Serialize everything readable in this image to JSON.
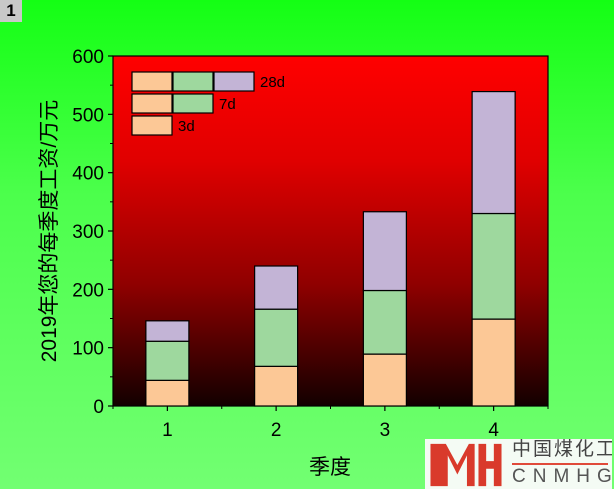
{
  "panel_label": "1",
  "chart_data": {
    "type": "bar",
    "stacked": true,
    "categories": [
      "1",
      "2",
      "3",
      "4"
    ],
    "series": [
      {
        "name": "3d",
        "values": [
          44,
          68,
          89,
          149
        ],
        "color": "#fcc896"
      },
      {
        "name": "7d",
        "values": [
          67,
          98,
          109,
          181
        ],
        "color": "#9ed89e"
      },
      {
        "name": "28d",
        "values": [
          35,
          74,
          135,
          209
        ],
        "color": "#c3b4d6"
      }
    ],
    "xlabel": "季度",
    "ylabel": "2019年您的每季度工资/万元",
    "ylim": [
      0,
      600
    ],
    "yticks": [
      "0",
      "100",
      "200",
      "300",
      "400",
      "500",
      "600"
    ],
    "legend_position": "top-left",
    "legend_entries": [
      "28d",
      "7d",
      "3d"
    ],
    "grid": false,
    "plot_background": "gradient red (#ff0000) top to black bottom"
  },
  "logo": {
    "cn": "中国煤化工",
    "en": "CNMHG",
    "mark": "MH"
  }
}
